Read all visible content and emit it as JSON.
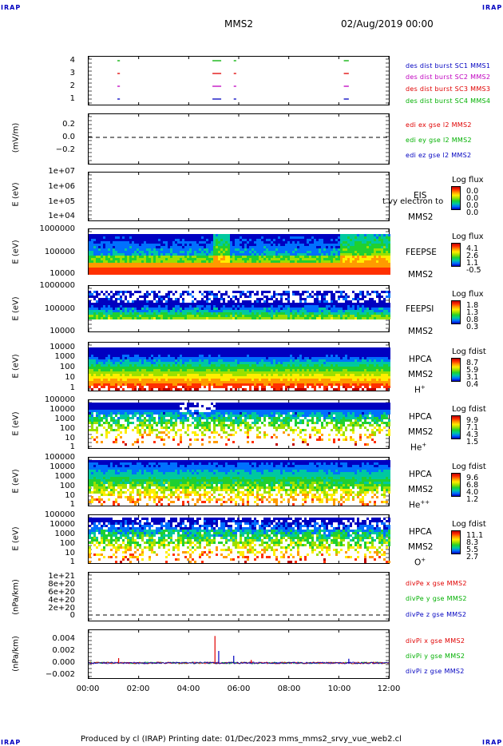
{
  "header": {
    "corner_tag": "IRAP",
    "mission": "MMS2",
    "datetime": "02/Aug/2019 00:00"
  },
  "footer": {
    "text": "Produced by cl (IRAP)    Printing date: 01/Dec/2023    mms_mms2_srvy_vue_web2.cl"
  },
  "x_axis": {
    "ticks": [
      "00:00",
      "02:00",
      "04:00",
      "06:00",
      "08:00",
      "10:00",
      "12:00"
    ],
    "range_hours": [
      0,
      12
    ]
  },
  "panels": {
    "burst": {
      "yticks": [
        "4",
        "3",
        "2",
        "1"
      ],
      "legend": [
        {
          "text": "des dist burst SC1 MMS1",
          "color": "#0000c0"
        },
        {
          "text": "des dist burst SC2 MMS2",
          "color": "#c000c0"
        },
        {
          "text": "des dist burst SC3 MMS3",
          "color": "#e00000"
        },
        {
          "text": "des dist burst SC4 MMS4",
          "color": "#00b000"
        }
      ]
    },
    "edi": {
      "ylabel": "(mV/m)",
      "yticks": [
        "0.2",
        "0.0",
        "−0.2"
      ],
      "legend": [
        {
          "text": "edi ex gse l2 MMS2",
          "color": "#e00000"
        },
        {
          "text": "edi ey gse l2 MMS2",
          "color": "#00b000"
        },
        {
          "text": "edi ez gse l2 MMS2",
          "color": "#0000c0"
        }
      ]
    },
    "eis": {
      "ylabel": "E (eV)",
      "yticks": [
        "1e+07",
        "1e+06",
        "1e+05",
        "1e+04"
      ],
      "instrument": "EIS",
      "overlay": "t vy electron to",
      "spacecraft": "MMS2",
      "colorbar": {
        "title": "Log flux",
        "values": [
          "0.0",
          "0.0",
          "0.0",
          "0.0"
        ]
      }
    },
    "feepse": {
      "ylabel": "E (eV)",
      "yticks": [
        "1000000",
        "100000",
        "10000"
      ],
      "instrument": "FEEPSE",
      "spacecraft": "MMS2",
      "colorbar": {
        "title": "Log flux",
        "values": [
          "4.1",
          "2.6",
          "1.1",
          "-0.5"
        ]
      }
    },
    "feepsi": {
      "ylabel": "E (eV)",
      "yticks": [
        "1000000",
        "100000",
        "10000"
      ],
      "instrument": "FEEPSI",
      "spacecraft": "MMS2",
      "colorbar": {
        "title": "Log flux",
        "values": [
          "1.8",
          "1.3",
          "0.8",
          "0.3"
        ]
      }
    },
    "hpca_h": {
      "ylabel": "E (eV)",
      "yticks": [
        "10000",
        "1000",
        "100",
        "10",
        "1"
      ],
      "instrument": "HPCA",
      "spacecraft": "MMS2",
      "species": "H",
      "charge": "+",
      "colorbar": {
        "title": "Log fdist",
        "values": [
          "8.7",
          "5.9",
          "3.1",
          "0.4"
        ]
      }
    },
    "hpca_he": {
      "ylabel": "E (eV)",
      "yticks": [
        "100000",
        "10000",
        "1000",
        "100",
        "10",
        "1"
      ],
      "instrument": "HPCA",
      "spacecraft": "MMS2",
      "species": "He",
      "charge": "+",
      "colorbar": {
        "title": "Log fdist",
        "values": [
          "9.9",
          "7.1",
          "4.3",
          "1.5"
        ]
      }
    },
    "hpca_hepp": {
      "ylabel": "E (eV)",
      "yticks": [
        "100000",
        "10000",
        "1000",
        "100",
        "10",
        "1"
      ],
      "instrument": "HPCA",
      "spacecraft": "MMS2",
      "species": "He",
      "charge": "++",
      "colorbar": {
        "title": "Log fdist",
        "values": [
          "9.6",
          "6.8",
          "4.0",
          "1.2"
        ]
      }
    },
    "hpca_o": {
      "ylabel": "E (eV)",
      "yticks": [
        "100000",
        "10000",
        "1000",
        "100",
        "10",
        "1"
      ],
      "instrument": "HPCA",
      "spacecraft": "MMS2",
      "species": "O",
      "charge": "+",
      "colorbar": {
        "title": "Log fdist",
        "values": [
          "11.1",
          "8.3",
          "5.5",
          "2.7"
        ]
      }
    },
    "divpe": {
      "ylabel": "(nPa/km)",
      "yticks": [
        "1e+21",
        "8e+20",
        "6e+20",
        "4e+20",
        "2e+20",
        "0"
      ],
      "legend": [
        {
          "text": "divPe x gse MMS2",
          "color": "#e00000"
        },
        {
          "text": "divPe y gse MMS2",
          "color": "#00b000"
        },
        {
          "text": "divPe z gse MMS2",
          "color": "#0000c0"
        }
      ]
    },
    "divpi": {
      "ylabel": "(nPa/km)",
      "yticks": [
        "0.004",
        "0.002",
        "0.000",
        "−0.002"
      ],
      "legend": [
        {
          "text": "divPi x gse MMS2",
          "color": "#e00000"
        },
        {
          "text": "divPi y gse MMS2",
          "color": "#00b000"
        },
        {
          "text": "divPi z gse MMS2",
          "color": "#0000c0"
        }
      ]
    }
  },
  "chart_data": {
    "type": "heatmap",
    "burst_intervals": [
      {
        "sc": 1,
        "color": "#0000c0",
        "t": [
          [
            1.15,
            1.25
          ],
          [
            4.95,
            5.3
          ],
          [
            5.8,
            5.9
          ],
          [
            10.2,
            10.4
          ]
        ]
      },
      {
        "sc": 2,
        "color": "#c000c0",
        "t": [
          [
            1.15,
            1.25
          ],
          [
            4.95,
            5.3
          ],
          [
            5.8,
            5.9
          ],
          [
            10.2,
            10.4
          ]
        ]
      },
      {
        "sc": 3,
        "color": "#e00000",
        "t": [
          [
            1.15,
            1.25
          ],
          [
            4.95,
            5.3
          ],
          [
            5.8,
            5.9
          ],
          [
            10.2,
            10.4
          ]
        ]
      },
      {
        "sc": 4,
        "color": "#00b000",
        "t": [
          [
            1.15,
            1.25
          ],
          [
            4.95,
            5.3
          ],
          [
            5.8,
            5.9
          ],
          [
            10.2,
            10.4
          ]
        ]
      }
    ],
    "divpi_spikes": [
      {
        "t": 1.2,
        "value": 0.0008,
        "color": "#e00000"
      },
      {
        "t": 5.05,
        "value": 0.0045,
        "color": "#e00000"
      },
      {
        "t": 5.2,
        "value": 0.002,
        "color": "#0000c0"
      },
      {
        "t": 5.8,
        "value": 0.0012,
        "color": "#0000c0"
      },
      {
        "t": 6.5,
        "value": 0.0005,
        "color": "#e00000"
      },
      {
        "t": 10.4,
        "value": 0.0007,
        "color": "#0000c0"
      }
    ]
  }
}
